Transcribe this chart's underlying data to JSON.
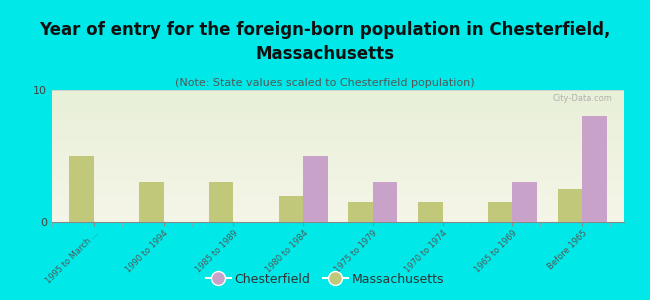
{
  "title": "Year of entry for the foreign-born population in Chesterfield,\nMassachusetts",
  "subtitle": "(Note: State values scaled to Chesterfield population)",
  "categories": [
    "1995 to March ...",
    "1990 to 1994",
    "1985 to 1989",
    "1980 to 1984",
    "1975 to 1979",
    "1970 to 1974",
    "1965 to 1969",
    "Before 1965"
  ],
  "chesterfield_values": [
    0,
    0,
    0,
    5,
    3,
    0,
    3,
    8
  ],
  "massachusetts_values": [
    5,
    3,
    3,
    2,
    1.5,
    1.5,
    1.5,
    2.5
  ],
  "chesterfield_color": "#c8a2c8",
  "massachusetts_color": "#c2c87a",
  "background_color": "#00e8e8",
  "watermark": "City-Data.com",
  "ylim": [
    0,
    10
  ],
  "yticks": [
    0,
    10
  ],
  "bar_width": 0.35,
  "title_fontsize": 12,
  "subtitle_fontsize": 8
}
